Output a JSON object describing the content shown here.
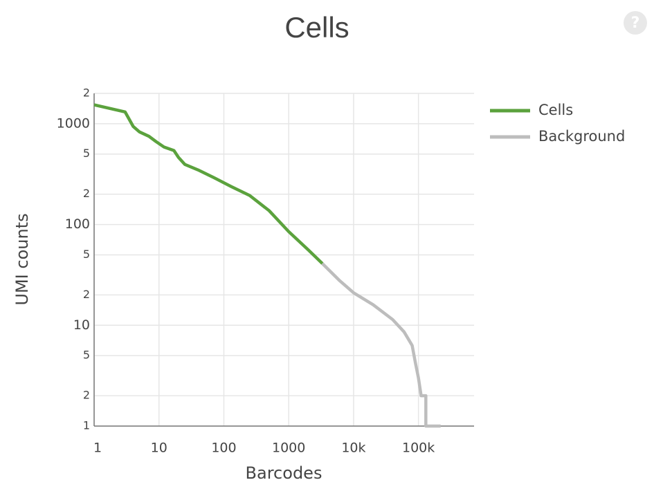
{
  "help_icon": "?",
  "chart_data": {
    "type": "line",
    "title": "Cells",
    "x_label": "Barcodes",
    "y_label": "UMI counts",
    "xscale": "log",
    "yscale": "log",
    "grid": true,
    "legend": "top-right",
    "xlim": [
      1,
      720000
    ],
    "ylim": [
      1,
      2000
    ],
    "xticks": [
      1,
      10,
      100,
      1000,
      {
        "value": 10000,
        "label": "10k"
      },
      {
        "value": 100000,
        "label": "100k"
      }
    ],
    "yticks": [
      1,
      2,
      5,
      10,
      {
        "value": 20,
        "label": "2"
      },
      {
        "value": 50,
        "label": "5"
      },
      100,
      {
        "value": 200,
        "label": "2"
      },
      {
        "value": 500,
        "label": "5"
      },
      1000,
      {
        "value": 2000,
        "label": "2"
      }
    ],
    "series": [
      {
        "name": "Cells",
        "color": "#5ba23d",
        "x": [
          1,
          3,
          4,
          5,
          7,
          9,
          12,
          17,
          20,
          25,
          40,
          70,
          130,
          250,
          500,
          1000,
          2000,
          3300
        ],
        "values": [
          1540,
          1310,
          940,
          830,
          750,
          665,
          586,
          542,
          463,
          395,
          348,
          292,
          238,
          194,
          137,
          85,
          56,
          41
        ]
      },
      {
        "name": "Background",
        "color": "#bdbdbd",
        "x": [
          3300,
          6000,
          10000,
          20000,
          40000,
          60000,
          80000,
          90000,
          100000,
          110000,
          130000,
          130000,
          220000
        ],
        "values": [
          41,
          28,
          21,
          16,
          11.4,
          8.6,
          6.3,
          4.2,
          3,
          2,
          2,
          1,
          1
        ]
      }
    ]
  }
}
